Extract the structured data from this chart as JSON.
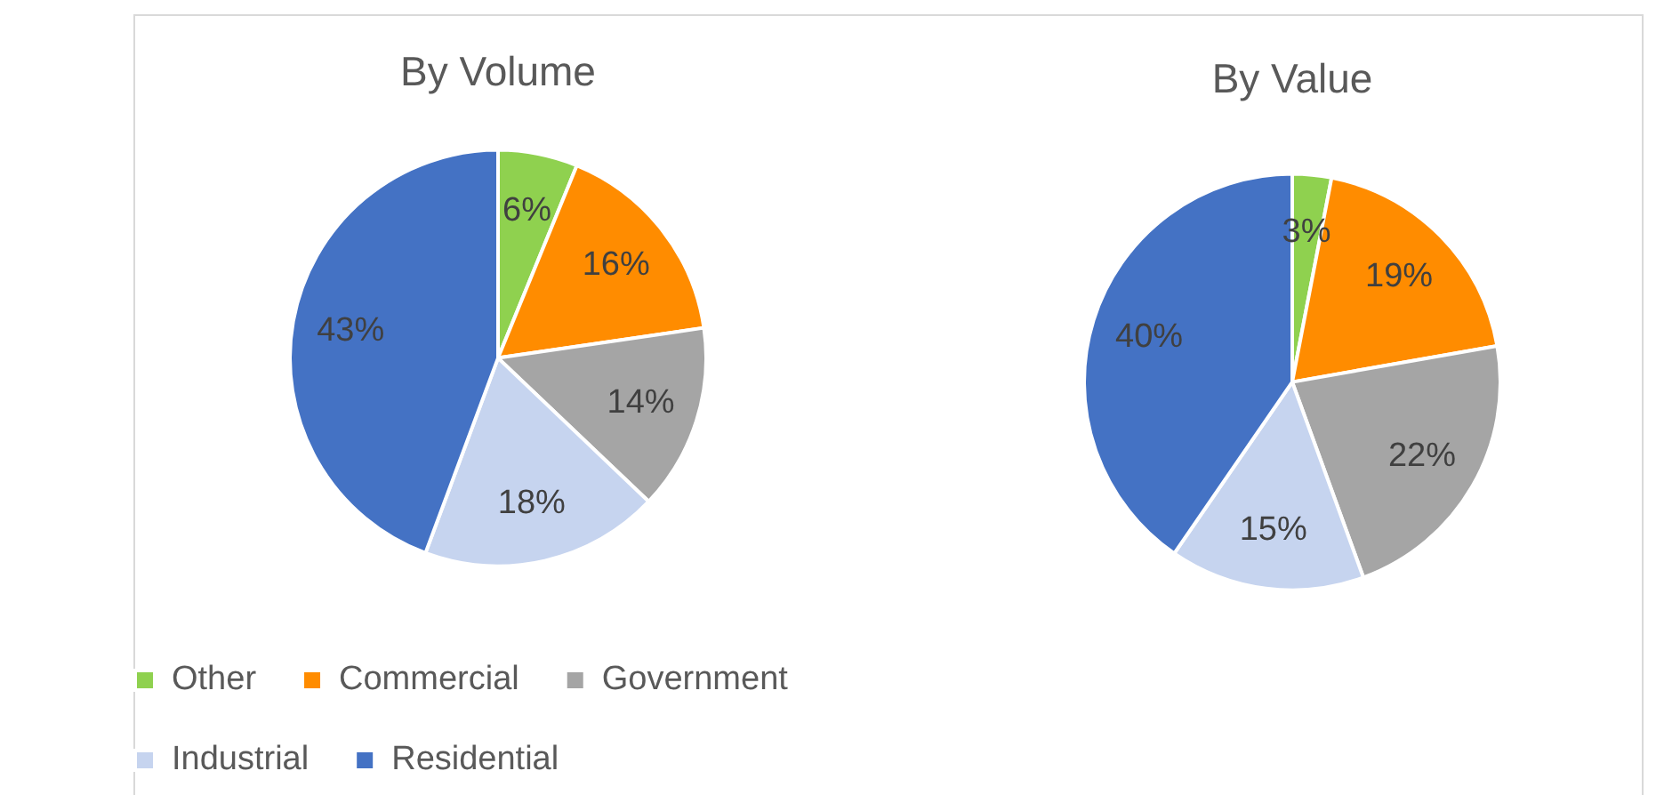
{
  "chart_data": [
    {
      "type": "pie",
      "title": "By Volume",
      "categories": [
        "Other",
        "Commercial",
        "Government",
        "Industrial",
        "Residential"
      ],
      "values": [
        6,
        16,
        14,
        18,
        43
      ],
      "value_labels": [
        "6%",
        "16%",
        "14%",
        "18%",
        "43%"
      ],
      "colors": [
        "#8fd14f",
        "#ff8c00",
        "#a5a5a5",
        "#c6d4ef",
        "#4472c4"
      ],
      "legend": "bottom"
    },
    {
      "type": "pie",
      "title": "By Value",
      "values": [
        3,
        19,
        22,
        15,
        40
      ],
      "value_labels": [
        "3%",
        "19%",
        "22%",
        "15%",
        "40%"
      ],
      "colors": [
        "#8fd14f",
        "#ff8c00",
        "#a5a5a5",
        "#c6d4ef",
        "#4472c4"
      ],
      "legend": false
    }
  ]
}
